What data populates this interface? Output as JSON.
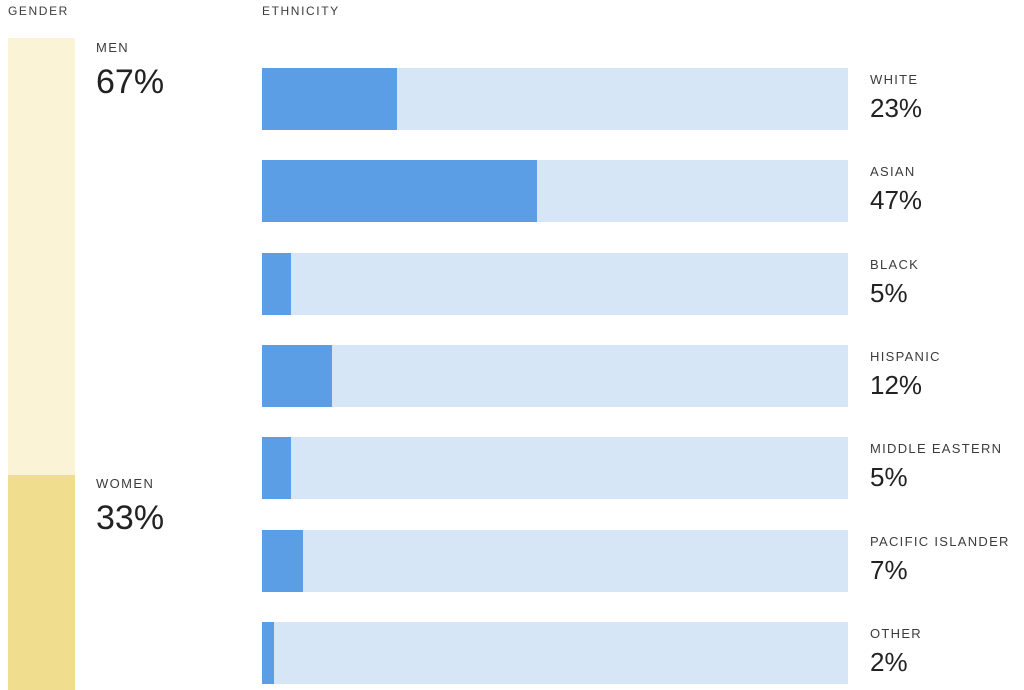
{
  "colors": {
    "men_segment": "#faf3d5",
    "women_segment": "#f0dd8d",
    "bar_fill": "#5b9ee5",
    "bar_track": "#d7e6f6"
  },
  "gender": {
    "title": "GENDER",
    "segments": [
      {
        "label": "MEN",
        "value": 67,
        "display": "67%"
      },
      {
        "label": "WOMEN",
        "value": 33,
        "display": "33%"
      }
    ]
  },
  "ethnicity": {
    "title": "ETHNICITY",
    "rows": [
      {
        "label": "WHITE",
        "value": 23,
        "display": "23%"
      },
      {
        "label": "ASIAN",
        "value": 47,
        "display": "47%"
      },
      {
        "label": "BLACK",
        "value": 5,
        "display": "5%"
      },
      {
        "label": "HISPANIC",
        "value": 12,
        "display": "12%"
      },
      {
        "label": "MIDDLE EASTERN",
        "value": 5,
        "display": "5%"
      },
      {
        "label": "PACIFIC ISLANDER",
        "value": 7,
        "display": "7%"
      },
      {
        "label": "OTHER",
        "value": 2,
        "display": "2%"
      }
    ]
  },
  "chart_data": [
    {
      "type": "bar",
      "title": "GENDER",
      "orientation": "vertical-stacked",
      "categories": [
        "MEN",
        "WOMEN"
      ],
      "values": [
        67,
        33
      ],
      "unit": "%",
      "colors": [
        "#faf3d5",
        "#f0dd8d"
      ],
      "legend_position": "right-of-bar",
      "grid": false
    },
    {
      "type": "bar",
      "title": "ETHNICITY",
      "orientation": "horizontal",
      "categories": [
        "WHITE",
        "ASIAN",
        "BLACK",
        "HISPANIC",
        "MIDDLE EASTERN",
        "PACIFIC ISLANDER",
        "OTHER"
      ],
      "values": [
        23,
        47,
        5,
        12,
        5,
        7,
        2
      ],
      "unit": "%",
      "xlim": [
        0,
        100
      ],
      "bar_color": "#5b9ee5",
      "track_color": "#d7e6f6",
      "legend_position": "right-of-bars",
      "grid": false
    }
  ]
}
